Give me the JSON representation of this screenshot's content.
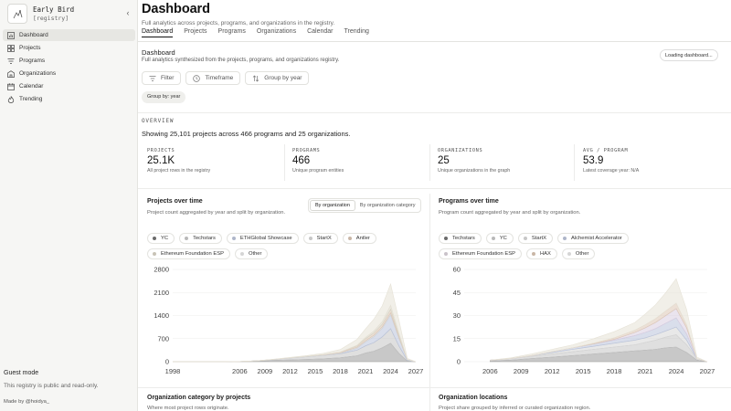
{
  "app": {
    "name": "Early Bird",
    "tag": "[registry]"
  },
  "sidebar": {
    "items": [
      {
        "label": "Dashboard",
        "icon": "bar-chart-icon",
        "active": true
      },
      {
        "label": "Projects",
        "icon": "grid-icon"
      },
      {
        "label": "Programs",
        "icon": "filter-icon"
      },
      {
        "label": "Organizations",
        "icon": "building-icon"
      },
      {
        "label": "Calendar",
        "icon": "calendar-icon"
      },
      {
        "label": "Trending",
        "icon": "flame-icon"
      }
    ],
    "guest_title": "Guest mode",
    "guest_text": "This registry is public and read-only.",
    "made_by": "Made by @hoidya_"
  },
  "header": {
    "title": "Dashboard",
    "subtitle": "Full analytics across projects, programs, and organizations in the registry.",
    "tabs": [
      "Dashboard",
      "Projects",
      "Programs",
      "Organizations",
      "Calendar",
      "Trending"
    ],
    "active_tab": "Dashboard"
  },
  "section": {
    "title": "Dashboard",
    "subtitle": "Full analytics synthesized from the projects, programs, and organizations registry.",
    "status": "Loading dashboard..."
  },
  "filters": {
    "filter": "Filter",
    "timeframe": "Timeframe",
    "group": "Group by year",
    "group_badge": "Group by: year"
  },
  "overview": {
    "label": "OVERVIEW",
    "summary": "Showing 25,101 projects across 466 programs and 25 organizations.",
    "stats": [
      {
        "label": "PROJECTS",
        "value": "25.1K",
        "desc": "All project rows in the registry"
      },
      {
        "label": "PROGRAMS",
        "value": "466",
        "desc": "Unique program entities"
      },
      {
        "label": "ORGANIZATIONS",
        "value": "25",
        "desc": "Unique organizations in the graph"
      },
      {
        "label": "AVG / PROGRAM",
        "value": "53.9",
        "desc": "Latest coverage year: N/A"
      }
    ]
  },
  "projects_panel": {
    "title": "Projects over time",
    "subtitle": "Project count aggregated by year and split by organization.",
    "toggle": [
      "By organization",
      "By organization category"
    ],
    "legend": [
      {
        "name": "YC",
        "color": "#6b6b6b"
      },
      {
        "name": "Techstars",
        "color": "#b9b9b9"
      },
      {
        "name": "ETHGlobal Showcase",
        "color": "#aeb6c9"
      },
      {
        "name": "StartX",
        "color": "#c7c7c7"
      },
      {
        "name": "Antler",
        "color": "#c9b6a6"
      },
      {
        "name": "Ethereum Foundation ESP",
        "color": "#c8c3b6"
      },
      {
        "name": "Other",
        "color": "#d5d5d5"
      }
    ]
  },
  "programs_panel": {
    "title": "Programs over time",
    "subtitle": "Program count aggregated by year and split by organization.",
    "legend": [
      {
        "name": "Techstars",
        "color": "#6b6b6b"
      },
      {
        "name": "YC",
        "color": "#b9b9b9"
      },
      {
        "name": "StartX",
        "color": "#c7c7c7"
      },
      {
        "name": "Alchemist Accelerator",
        "color": "#aeb6c9"
      },
      {
        "name": "Ethereum Foundation ESP",
        "color": "#c9c2c9"
      },
      {
        "name": "HAX",
        "color": "#c9b6a6"
      },
      {
        "name": "Other",
        "color": "#d5d5d5"
      }
    ]
  },
  "chart_data": [
    {
      "type": "area",
      "x": [
        1998,
        2000,
        2002,
        2004,
        2006,
        2008,
        2010,
        2012,
        2014,
        2016,
        2018,
        2020,
        2021,
        2022,
        2023,
        2024,
        2025,
        2026,
        2027
      ],
      "yticks": [
        0,
        700,
        1400,
        2100,
        2800
      ],
      "xticks": [
        1998,
        2006,
        2009,
        2012,
        2015,
        2018,
        2021,
        2024,
        2027
      ],
      "ylim": [
        0,
        2800
      ],
      "series": [
        {
          "name": "YC",
          "color": "#9a9a9a",
          "values": [
            0,
            0,
            0,
            0,
            5,
            20,
            40,
            55,
            70,
            90,
            120,
            180,
            260,
            320,
            420,
            560,
            250,
            20,
            0
          ]
        },
        {
          "name": "Techstars",
          "color": "#c4c4c4",
          "values": [
            0,
            0,
            0,
            0,
            0,
            5,
            25,
            55,
            80,
            100,
            120,
            170,
            220,
            260,
            330,
            440,
            220,
            20,
            0
          ]
        },
        {
          "name": "ETHGlobal Showcase",
          "color": "#b9c3da",
          "values": [
            0,
            0,
            0,
            0,
            0,
            0,
            0,
            0,
            0,
            0,
            10,
            60,
            120,
            180,
            260,
            420,
            230,
            20,
            0
          ]
        },
        {
          "name": "StartX",
          "color": "#d6d6d6",
          "values": [
            0,
            0,
            0,
            0,
            0,
            0,
            5,
            10,
            15,
            20,
            25,
            30,
            35,
            40,
            45,
            60,
            30,
            0,
            0
          ]
        },
        {
          "name": "Antler",
          "color": "#dcc6b4",
          "values": [
            0,
            0,
            0,
            0,
            0,
            0,
            0,
            0,
            0,
            5,
            15,
            40,
            60,
            70,
            80,
            110,
            50,
            0,
            0
          ]
        },
        {
          "name": "Ethereum Foundation ESP",
          "color": "#d8d5c6",
          "values": [
            0,
            0,
            0,
            0,
            0,
            0,
            0,
            0,
            0,
            0,
            0,
            20,
            40,
            60,
            80,
            120,
            70,
            0,
            0
          ]
        },
        {
          "name": "Other",
          "color": "#e6e2d6",
          "values": [
            0,
            0,
            0,
            0,
            0,
            0,
            5,
            10,
            20,
            40,
            80,
            180,
            260,
            360,
            480,
            650,
            400,
            40,
            0
          ]
        }
      ]
    },
    {
      "type": "area",
      "x": [
        2006,
        2008,
        2010,
        2012,
        2014,
        2016,
        2018,
        2020,
        2021,
        2022,
        2023,
        2024,
        2025,
        2026,
        2027
      ],
      "yticks": [
        0,
        15,
        30,
        45,
        60
      ],
      "xticks": [
        2006,
        2009,
        2012,
        2015,
        2018,
        2021,
        2024,
        2027
      ],
      "ylim": [
        0,
        60
      ],
      "series": [
        {
          "name": "Techstars",
          "color": "#9a9a9a",
          "values": [
            0.5,
            1,
            2,
            3,
            4,
            5,
            6,
            7,
            7.5,
            8,
            9,
            9.5,
            6,
            1,
            0
          ]
        },
        {
          "name": "YC",
          "color": "#c4c4c4",
          "values": [
            0.5,
            1,
            1.5,
            2,
            2.5,
            3,
            3.5,
            4,
            5,
            6,
            7,
            8,
            5,
            1,
            0
          ]
        },
        {
          "name": "StartX",
          "color": "#d6d6d6",
          "values": [
            0,
            0,
            0.5,
            1,
            1.5,
            2,
            2.5,
            3,
            3,
            3.5,
            4,
            5,
            3,
            0,
            0
          ]
        },
        {
          "name": "Alchemist Accelerator",
          "color": "#b9c3da",
          "values": [
            0,
            0,
            0,
            0.5,
            1,
            1.5,
            2,
            3,
            3.5,
            4,
            5,
            6,
            4,
            0,
            0
          ]
        },
        {
          "name": "Ethereum Foundation ESP",
          "color": "#d9cde0",
          "values": [
            0,
            0,
            0,
            0,
            0,
            0,
            0.5,
            2,
            3,
            4,
            5,
            6,
            4,
            0,
            0
          ]
        },
        {
          "name": "HAX",
          "color": "#dcc6b4",
          "values": [
            0,
            0,
            0,
            0,
            0,
            0.5,
            1,
            1.5,
            2,
            2.5,
            3,
            3.5,
            2,
            0,
            0
          ]
        },
        {
          "name": "Other",
          "color": "#e6e2d6",
          "values": [
            0,
            0.5,
            1,
            1.5,
            2,
            3,
            4,
            5,
            7,
            9,
            12,
            16,
            10,
            1,
            0
          ]
        }
      ]
    }
  ],
  "bottom": {
    "left_title": "Organization category by projects",
    "left_sub": "Where most project rows originate.",
    "right_title": "Organization locations",
    "right_sub": "Project share grouped by inferred or curated organization region."
  }
}
